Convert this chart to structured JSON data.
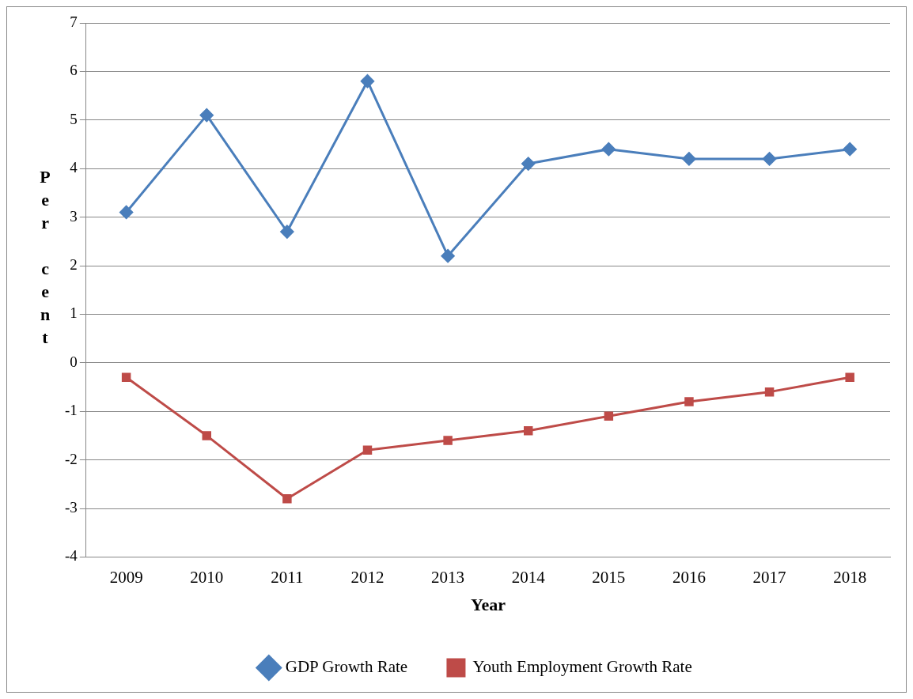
{
  "chart_data": {
    "type": "line",
    "xlabel": "Year",
    "ylabel": "Per cent",
    "categories": [
      "2009",
      "2010",
      "2011",
      "2012",
      "2013",
      "2014",
      "2015",
      "2016",
      "2017",
      "2018"
    ],
    "series": [
      {
        "name": "GDP Growth Rate",
        "color": "#4a7ebb",
        "marker": "diamond",
        "values": [
          3.1,
          5.1,
          2.7,
          5.8,
          2.2,
          4.1,
          4.4,
          4.2,
          4.2,
          4.4
        ]
      },
      {
        "name": "Youth Employment Growth Rate",
        "color": "#be4b48",
        "marker": "square",
        "values": [
          -0.3,
          -1.5,
          -2.8,
          -1.8,
          -1.6,
          -1.4,
          -1.1,
          -0.8,
          -0.6,
          -0.3
        ]
      }
    ],
    "ylim": [
      -4,
      7
    ],
    "yticks": [
      -4,
      -3,
      -2,
      -1,
      0,
      1,
      2,
      3,
      4,
      5,
      6,
      7
    ],
    "grid": "y",
    "legend": "bottom",
    "line_style": "solid"
  }
}
